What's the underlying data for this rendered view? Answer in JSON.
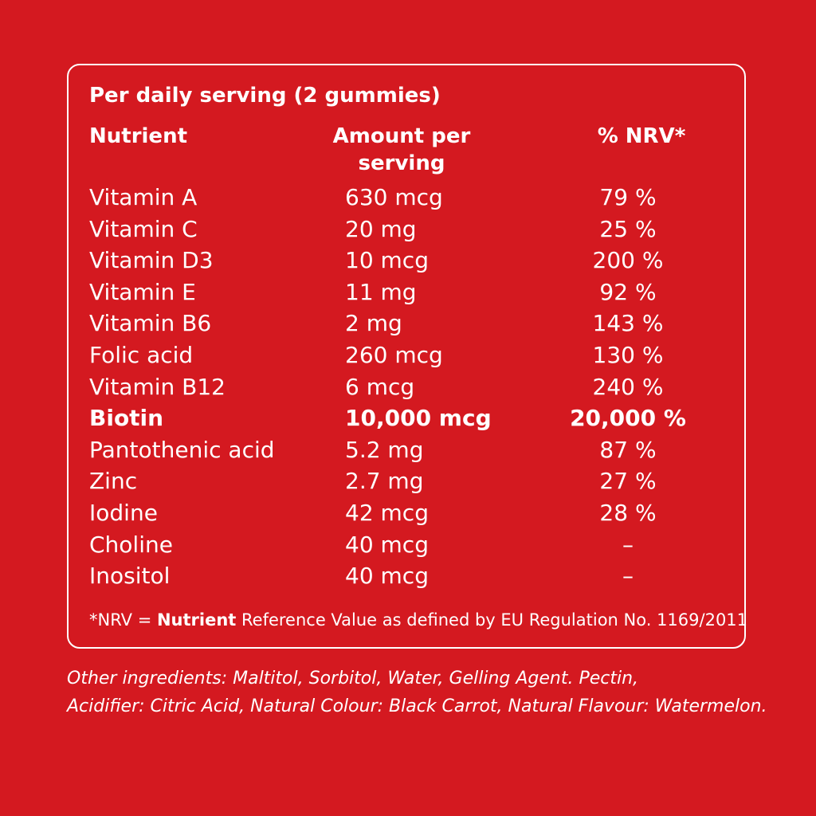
{
  "heading": "Per daily serving (2 gummies)",
  "columns": {
    "nutrient": "Nutrient",
    "amount": "Amount per serving",
    "nrv": "% NRV*"
  },
  "rows": [
    {
      "name": "Vitamin A",
      "amount": "630 mcg",
      "nrv": "79 %",
      "bold": false
    },
    {
      "name": "Vitamin C",
      "amount": "20 mg",
      "nrv": "25 %",
      "bold": false
    },
    {
      "name": "Vitamin D3",
      "amount": "10 mcg",
      "nrv": "200 %",
      "bold": false
    },
    {
      "name": "Vitamin E",
      "amount": "11 mg",
      "nrv": "92 %",
      "bold": false
    },
    {
      "name": "Vitamin B6",
      "amount": "2 mg",
      "nrv": "143 %",
      "bold": false
    },
    {
      "name": "Folic acid",
      "amount": "260 mcg",
      "nrv": "130 %",
      "bold": false
    },
    {
      "name": "Vitamin B12",
      "amount": "6 mcg",
      "nrv": "240 %",
      "bold": false
    },
    {
      "name": "Biotin",
      "amount": "10,000 mcg",
      "nrv": "20,000 %",
      "bold": true
    },
    {
      "name": "Pantothenic acid",
      "amount": "5.2 mg",
      "nrv": "87 %",
      "bold": false
    },
    {
      "name": "Zinc",
      "amount": "2.7 mg",
      "nrv": "27 %",
      "bold": false
    },
    {
      "name": "Iodine",
      "amount": "42 mcg",
      "nrv": "28 %",
      "bold": false
    },
    {
      "name": "Choline",
      "amount": "40 mcg",
      "nrv": "–",
      "bold": false
    },
    {
      "name": "Inositol",
      "amount": "40 mcg",
      "nrv": "–",
      "bold": false
    }
  ],
  "footnote": {
    "prefix": "*NRV = ",
    "bold_word": "Nutrient",
    "rest": " Reference Value as defined by EU Regulation No. 1169/2011"
  },
  "ingredients": {
    "line1": "Other ingredients: Maltitol, Sorbitol, Water, Gelling Agent. Pectin,",
    "line2": "Acidifier: Citric Acid, Natural Colour: Black Carrot, Natural Flavour: Watermelon."
  },
  "colors": {
    "background": "#d41920",
    "text": "#ffffff"
  }
}
